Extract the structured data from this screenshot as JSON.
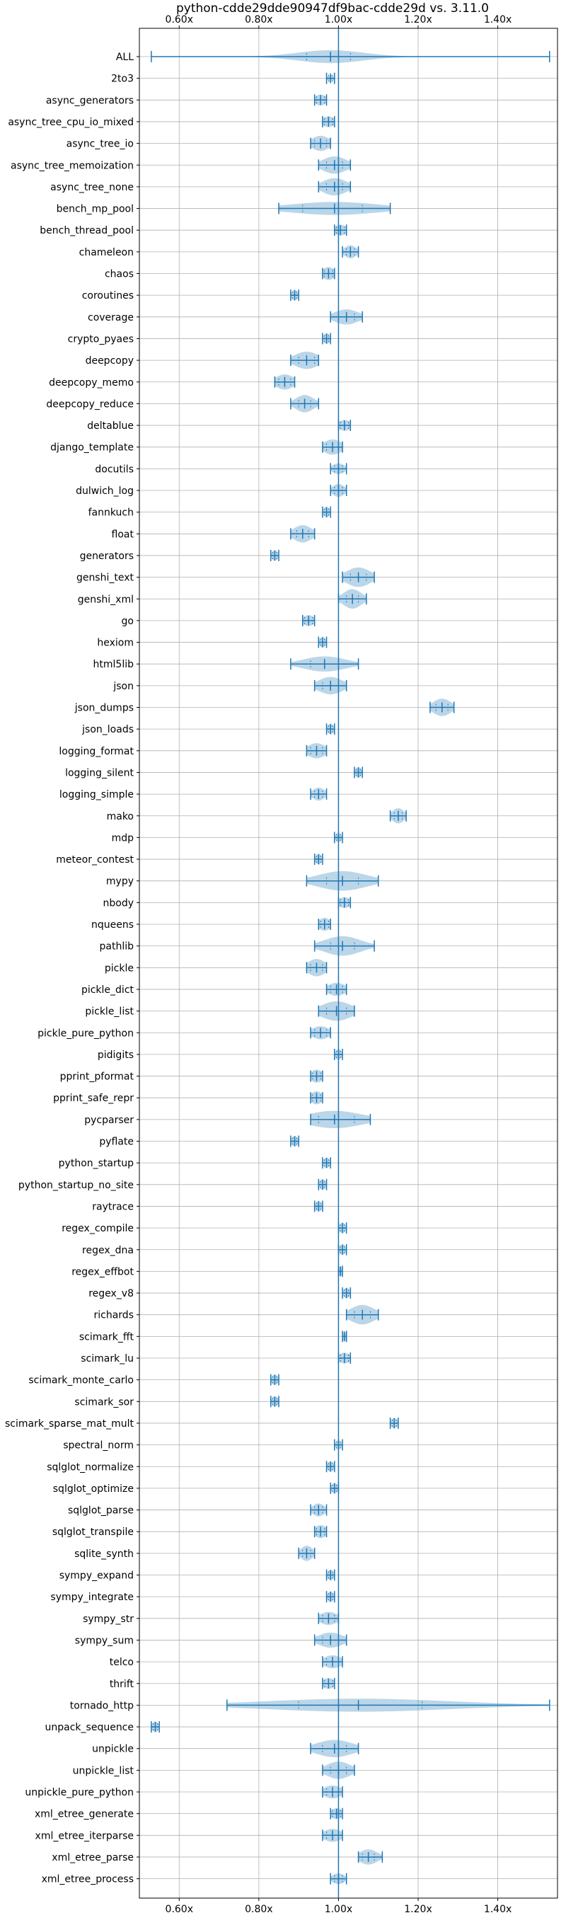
{
  "chart_data": {
    "type": "violin",
    "title": "python-cdde29dde90947df9bac-cdde29d vs. 3.11.0",
    "xlabel": "",
    "ylabel": "",
    "x_tick_labels": [
      "0.60x",
      "0.80x",
      "1.00x",
      "1.20x",
      "1.40x"
    ],
    "x_ticks": [
      0.6,
      0.8,
      1.0,
      1.2,
      1.4
    ],
    "xlim": [
      0.5,
      1.55
    ],
    "reference_line": 1.0,
    "grid": true,
    "colors": {
      "body": "#1f77b4",
      "body_alpha": 0.3,
      "line": "#1f77b4"
    },
    "benchmarks": [
      {
        "name": "ALL",
        "min": 0.53,
        "max": 1.53,
        "median": 0.98,
        "q1": 0.92,
        "q3": 1.03,
        "width": 0.6
      },
      {
        "name": "2to3",
        "min": 0.97,
        "max": 0.99,
        "median": 0.98,
        "q1": 0.975,
        "q3": 0.985,
        "width": 0.3
      },
      {
        "name": "async_generators",
        "min": 0.94,
        "max": 0.97,
        "median": 0.955,
        "q1": 0.945,
        "q3": 0.965,
        "width": 0.5
      },
      {
        "name": "async_tree_cpu_io_mixed",
        "min": 0.96,
        "max": 0.99,
        "median": 0.975,
        "q1": 0.965,
        "q3": 0.985,
        "width": 0.5
      },
      {
        "name": "async_tree_io",
        "min": 0.93,
        "max": 0.98,
        "median": 0.955,
        "q1": 0.94,
        "q3": 0.97,
        "width": 0.7
      },
      {
        "name": "async_tree_memoization",
        "min": 0.95,
        "max": 1.03,
        "median": 0.99,
        "q1": 0.97,
        "q3": 1.01,
        "width": 0.8
      },
      {
        "name": "async_tree_none",
        "min": 0.95,
        "max": 1.03,
        "median": 0.99,
        "q1": 0.97,
        "q3": 1.01,
        "width": 0.8
      },
      {
        "name": "bench_mp_pool",
        "min": 0.85,
        "max": 1.13,
        "median": 0.99,
        "q1": 0.91,
        "q3": 1.06,
        "width": 0.6
      },
      {
        "name": "bench_thread_pool",
        "min": 0.99,
        "max": 1.02,
        "median": 1.005,
        "q1": 0.995,
        "q3": 1.015,
        "width": 0.5
      },
      {
        "name": "chameleon",
        "min": 1.01,
        "max": 1.05,
        "median": 1.03,
        "q1": 1.02,
        "q3": 1.04,
        "width": 0.6
      },
      {
        "name": "chaos",
        "min": 0.96,
        "max": 0.99,
        "median": 0.975,
        "q1": 0.965,
        "q3": 0.985,
        "width": 0.6
      },
      {
        "name": "coroutines",
        "min": 0.88,
        "max": 0.9,
        "median": 0.89,
        "q1": 0.885,
        "q3": 0.895,
        "width": 0.5
      },
      {
        "name": "coverage",
        "min": 0.98,
        "max": 1.06,
        "median": 1.02,
        "q1": 1.0,
        "q3": 1.04,
        "width": 0.7
      },
      {
        "name": "crypto_pyaes",
        "min": 0.96,
        "max": 0.98,
        "median": 0.97,
        "q1": 0.965,
        "q3": 0.975,
        "width": 0.5
      },
      {
        "name": "deepcopy",
        "min": 0.88,
        "max": 0.95,
        "median": 0.92,
        "q1": 0.9,
        "q3": 0.94,
        "width": 0.8
      },
      {
        "name": "deepcopy_memo",
        "min": 0.84,
        "max": 0.89,
        "median": 0.865,
        "q1": 0.85,
        "q3": 0.88,
        "width": 0.7
      },
      {
        "name": "deepcopy_reduce",
        "min": 0.88,
        "max": 0.95,
        "median": 0.915,
        "q1": 0.9,
        "q3": 0.93,
        "width": 0.8
      },
      {
        "name": "deltablue",
        "min": 1.0,
        "max": 1.03,
        "median": 1.015,
        "q1": 1.005,
        "q3": 1.025,
        "width": 0.5
      },
      {
        "name": "django_template",
        "min": 0.96,
        "max": 1.01,
        "median": 0.985,
        "q1": 0.97,
        "q3": 1.0,
        "width": 0.7
      },
      {
        "name": "docutils",
        "min": 0.98,
        "max": 1.02,
        "median": 1.0,
        "q1": 0.99,
        "q3": 1.01,
        "width": 0.5
      },
      {
        "name": "dulwich_log",
        "min": 0.98,
        "max": 1.02,
        "median": 1.0,
        "q1": 0.99,
        "q3": 1.01,
        "width": 0.6
      },
      {
        "name": "fannkuch",
        "min": 0.96,
        "max": 0.98,
        "median": 0.97,
        "q1": 0.965,
        "q3": 0.975,
        "width": 0.5
      },
      {
        "name": "float",
        "min": 0.88,
        "max": 0.94,
        "median": 0.91,
        "q1": 0.895,
        "q3": 0.925,
        "width": 0.8
      },
      {
        "name": "generators",
        "min": 0.83,
        "max": 0.85,
        "median": 0.84,
        "q1": 0.835,
        "q3": 0.845,
        "width": 0.5
      },
      {
        "name": "genshi_text",
        "min": 1.01,
        "max": 1.09,
        "median": 1.05,
        "q1": 1.03,
        "q3": 1.07,
        "width": 0.9
      },
      {
        "name": "genshi_xml",
        "min": 1.0,
        "max": 1.07,
        "median": 1.035,
        "q1": 1.02,
        "q3": 1.05,
        "width": 0.9
      },
      {
        "name": "go",
        "min": 0.91,
        "max": 0.94,
        "median": 0.925,
        "q1": 0.915,
        "q3": 0.935,
        "width": 0.5
      },
      {
        "name": "hexiom",
        "min": 0.95,
        "max": 0.97,
        "median": 0.96,
        "q1": 0.955,
        "q3": 0.965,
        "width": 0.5
      },
      {
        "name": "html5lib",
        "min": 0.88,
        "max": 1.05,
        "median": 0.965,
        "q1": 0.93,
        "q3": 1.0,
        "width": 0.7
      },
      {
        "name": "json",
        "min": 0.94,
        "max": 1.02,
        "median": 0.98,
        "q1": 0.96,
        "q3": 1.0,
        "width": 0.8
      },
      {
        "name": "json_dumps",
        "min": 1.23,
        "max": 1.29,
        "median": 1.26,
        "q1": 1.245,
        "q3": 1.275,
        "width": 0.8
      },
      {
        "name": "json_loads",
        "min": 0.97,
        "max": 0.99,
        "median": 0.98,
        "q1": 0.975,
        "q3": 0.985,
        "width": 0.5
      },
      {
        "name": "logging_format",
        "min": 0.92,
        "max": 0.97,
        "median": 0.945,
        "q1": 0.93,
        "q3": 0.96,
        "width": 0.7
      },
      {
        "name": "logging_silent",
        "min": 1.04,
        "max": 1.06,
        "median": 1.05,
        "q1": 1.045,
        "q3": 1.055,
        "width": 0.5
      },
      {
        "name": "logging_simple",
        "min": 0.93,
        "max": 0.97,
        "median": 0.95,
        "q1": 0.94,
        "q3": 0.96,
        "width": 0.6
      },
      {
        "name": "mako",
        "min": 1.13,
        "max": 1.17,
        "median": 1.15,
        "q1": 1.14,
        "q3": 1.16,
        "width": 0.7
      },
      {
        "name": "mdp",
        "min": 0.99,
        "max": 1.01,
        "median": 1.0,
        "q1": 0.995,
        "q3": 1.005,
        "width": 0.4
      },
      {
        "name": "meteor_contest",
        "min": 0.94,
        "max": 0.96,
        "median": 0.95,
        "q1": 0.945,
        "q3": 0.955,
        "width": 0.5
      },
      {
        "name": "mypy",
        "min": 0.92,
        "max": 1.1,
        "median": 1.01,
        "q1": 0.97,
        "q3": 1.05,
        "width": 0.9
      },
      {
        "name": "nbody",
        "min": 1.0,
        "max": 1.03,
        "median": 1.015,
        "q1": 1.005,
        "q3": 1.025,
        "width": 0.5
      },
      {
        "name": "nqueens",
        "min": 0.95,
        "max": 0.98,
        "median": 0.965,
        "q1": 0.955,
        "q3": 0.975,
        "width": 0.6
      },
      {
        "name": "pathlib",
        "min": 0.94,
        "max": 1.09,
        "median": 1.01,
        "q1": 0.98,
        "q3": 1.04,
        "width": 0.9
      },
      {
        "name": "pickle",
        "min": 0.92,
        "max": 0.97,
        "median": 0.945,
        "q1": 0.93,
        "q3": 0.96,
        "width": 0.8
      },
      {
        "name": "pickle_dict",
        "min": 0.97,
        "max": 1.02,
        "median": 0.995,
        "q1": 0.98,
        "q3": 1.01,
        "width": 0.6
      },
      {
        "name": "pickle_list",
        "min": 0.95,
        "max": 1.04,
        "median": 0.995,
        "q1": 0.97,
        "q3": 1.02,
        "width": 0.9
      },
      {
        "name": "pickle_pure_python",
        "min": 0.93,
        "max": 0.98,
        "median": 0.955,
        "q1": 0.94,
        "q3": 0.97,
        "width": 0.6
      },
      {
        "name": "pidigits",
        "min": 0.99,
        "max": 1.01,
        "median": 1.0,
        "q1": 0.995,
        "q3": 1.005,
        "width": 0.5
      },
      {
        "name": "pprint_pformat",
        "min": 0.93,
        "max": 0.96,
        "median": 0.945,
        "q1": 0.935,
        "q3": 0.955,
        "width": 0.6
      },
      {
        "name": "pprint_safe_repr",
        "min": 0.93,
        "max": 0.96,
        "median": 0.945,
        "q1": 0.935,
        "q3": 0.955,
        "width": 0.6
      },
      {
        "name": "pycparser",
        "min": 0.93,
        "max": 1.08,
        "median": 0.99,
        "q1": 0.95,
        "q3": 1.04,
        "width": 0.8
      },
      {
        "name": "pyflate",
        "min": 0.88,
        "max": 0.9,
        "median": 0.89,
        "q1": 0.885,
        "q3": 0.895,
        "width": 0.5
      },
      {
        "name": "python_startup",
        "min": 0.96,
        "max": 0.98,
        "median": 0.97,
        "q1": 0.965,
        "q3": 0.975,
        "width": 0.5
      },
      {
        "name": "python_startup_no_site",
        "min": 0.95,
        "max": 0.97,
        "median": 0.96,
        "q1": 0.955,
        "q3": 0.965,
        "width": 0.5
      },
      {
        "name": "raytrace",
        "min": 0.94,
        "max": 0.96,
        "median": 0.95,
        "q1": 0.945,
        "q3": 0.955,
        "width": 0.5
      },
      {
        "name": "regex_compile",
        "min": 1.0,
        "max": 1.02,
        "median": 1.01,
        "q1": 1.005,
        "q3": 1.015,
        "width": 0.5
      },
      {
        "name": "regex_dna",
        "min": 1.0,
        "max": 1.02,
        "median": 1.01,
        "q1": 1.005,
        "q3": 1.015,
        "width": 0.5
      },
      {
        "name": "regex_effbot",
        "min": 1.0,
        "max": 1.01,
        "median": 1.005,
        "q1": 1.0,
        "q3": 1.01,
        "width": 0.4
      },
      {
        "name": "regex_v8",
        "min": 1.01,
        "max": 1.03,
        "median": 1.02,
        "q1": 1.015,
        "q3": 1.025,
        "width": 0.5
      },
      {
        "name": "richards",
        "min": 1.02,
        "max": 1.1,
        "median": 1.06,
        "q1": 1.04,
        "q3": 1.08,
        "width": 0.9
      },
      {
        "name": "scimark_fft",
        "min": 1.01,
        "max": 1.02,
        "median": 1.015,
        "q1": 1.01,
        "q3": 1.02,
        "width": 0.4
      },
      {
        "name": "scimark_lu",
        "min": 1.0,
        "max": 1.03,
        "median": 1.015,
        "q1": 1.005,
        "q3": 1.025,
        "width": 0.5
      },
      {
        "name": "scimark_monte_carlo",
        "min": 0.83,
        "max": 0.85,
        "median": 0.84,
        "q1": 0.835,
        "q3": 0.845,
        "width": 0.5
      },
      {
        "name": "scimark_sor",
        "min": 0.83,
        "max": 0.85,
        "median": 0.84,
        "q1": 0.835,
        "q3": 0.845,
        "width": 0.5
      },
      {
        "name": "scimark_sparse_mat_mult",
        "min": 1.13,
        "max": 1.15,
        "median": 1.14,
        "q1": 1.135,
        "q3": 1.145,
        "width": 0.5
      },
      {
        "name": "spectral_norm",
        "min": 0.99,
        "max": 1.01,
        "median": 1.0,
        "q1": 0.995,
        "q3": 1.005,
        "width": 0.4
      },
      {
        "name": "sqlglot_normalize",
        "min": 0.97,
        "max": 0.99,
        "median": 0.98,
        "q1": 0.975,
        "q3": 0.985,
        "width": 0.5
      },
      {
        "name": "sqlglot_optimize",
        "min": 0.98,
        "max": 1.0,
        "median": 0.99,
        "q1": 0.985,
        "q3": 0.995,
        "width": 0.5
      },
      {
        "name": "sqlglot_parse",
        "min": 0.93,
        "max": 0.97,
        "median": 0.95,
        "q1": 0.94,
        "q3": 0.96,
        "width": 0.6
      },
      {
        "name": "sqlglot_transpile",
        "min": 0.94,
        "max": 0.97,
        "median": 0.955,
        "q1": 0.945,
        "q3": 0.965,
        "width": 0.6
      },
      {
        "name": "sqlite_synth",
        "min": 0.9,
        "max": 0.94,
        "median": 0.92,
        "q1": 0.91,
        "q3": 0.93,
        "width": 0.7
      },
      {
        "name": "sympy_expand",
        "min": 0.97,
        "max": 0.99,
        "median": 0.98,
        "q1": 0.975,
        "q3": 0.985,
        "width": 0.5
      },
      {
        "name": "sympy_integrate",
        "min": 0.97,
        "max": 0.99,
        "median": 0.98,
        "q1": 0.975,
        "q3": 0.985,
        "width": 0.5
      },
      {
        "name": "sympy_str",
        "min": 0.95,
        "max": 1.0,
        "median": 0.975,
        "q1": 0.96,
        "q3": 0.99,
        "width": 0.6
      },
      {
        "name": "sympy_sum",
        "min": 0.94,
        "max": 1.02,
        "median": 0.98,
        "q1": 0.96,
        "q3": 1.0,
        "width": 0.7
      },
      {
        "name": "telco",
        "min": 0.96,
        "max": 1.01,
        "median": 0.985,
        "q1": 0.97,
        "q3": 1.0,
        "width": 0.6
      },
      {
        "name": "thrift",
        "min": 0.96,
        "max": 0.99,
        "median": 0.975,
        "q1": 0.965,
        "q3": 0.985,
        "width": 0.5
      },
      {
        "name": "tornado_http",
        "min": 0.72,
        "max": 1.53,
        "median": 1.05,
        "q1": 0.9,
        "q3": 1.21,
        "width": 0.6
      },
      {
        "name": "unpack_sequence",
        "min": 0.53,
        "max": 0.55,
        "median": 0.54,
        "q1": 0.535,
        "q3": 0.545,
        "width": 0.5
      },
      {
        "name": "unpickle",
        "min": 0.93,
        "max": 1.05,
        "median": 0.99,
        "q1": 0.96,
        "q3": 1.02,
        "width": 0.8
      },
      {
        "name": "unpickle_list",
        "min": 0.96,
        "max": 1.04,
        "median": 1.0,
        "q1": 0.98,
        "q3": 1.02,
        "width": 0.8
      },
      {
        "name": "unpickle_pure_python",
        "min": 0.96,
        "max": 1.01,
        "median": 0.985,
        "q1": 0.97,
        "q3": 1.0,
        "width": 0.6
      },
      {
        "name": "xml_etree_generate",
        "min": 0.98,
        "max": 1.01,
        "median": 0.995,
        "q1": 0.985,
        "q3": 1.005,
        "width": 0.5
      },
      {
        "name": "xml_etree_iterparse",
        "min": 0.96,
        "max": 1.01,
        "median": 0.985,
        "q1": 0.97,
        "q3": 1.0,
        "width": 0.6
      },
      {
        "name": "xml_etree_parse",
        "min": 1.05,
        "max": 1.11,
        "median": 1.075,
        "q1": 1.06,
        "q3": 1.09,
        "width": 0.7
      },
      {
        "name": "xml_etree_process",
        "min": 0.98,
        "max": 1.02,
        "median": 1.0,
        "q1": 0.99,
        "q3": 1.01,
        "width": 0.5
      }
    ]
  }
}
